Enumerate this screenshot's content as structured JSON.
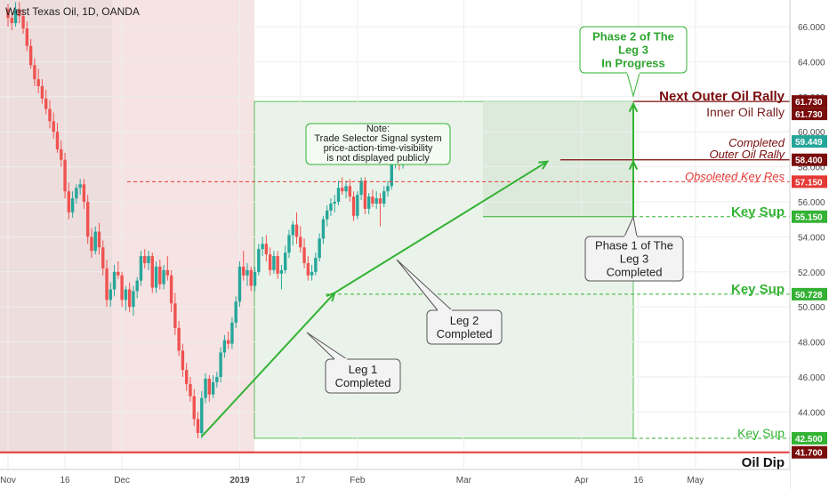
{
  "chart_data": {
    "type": "candlestick",
    "title": "West Texas Oil, 1D, OANDA",
    "ylim": [
      41.0,
      67.5
    ],
    "y_ticks": [
      "44.000",
      "46.000",
      "48.000",
      "50.000",
      "52.000",
      "54.000",
      "56.000",
      "58.000",
      "60.000",
      "62.000",
      "64.000",
      "66.000"
    ],
    "x_labels": [
      {
        "label": "Nov",
        "day": 0
      },
      {
        "label": "16",
        "day": 15
      },
      {
        "label": "Dec",
        "day": 30
      },
      {
        "label": "2019",
        "day": 61
      },
      {
        "label": "17",
        "day": 77
      },
      {
        "label": "Feb",
        "day": 92
      },
      {
        "label": "Mar",
        "day": 120
      },
      {
        "label": "Apr",
        "day": 151
      },
      {
        "label": "16",
        "day": 166
      },
      {
        "label": "May",
        "day": 181
      }
    ],
    "colors": {
      "up": "#26a69a",
      "down": "#ef5350",
      "green": "#33b233",
      "dark_red": "#7a0c0c",
      "red": "#e53935"
    },
    "candles": [
      {
        "o": 67.0,
        "h": 67.3,
        "l": 66.0,
        "c": 66.5
      },
      {
        "o": 66.5,
        "h": 66.9,
        "l": 65.8,
        "c": 66.2
      },
      {
        "o": 66.2,
        "h": 67.4,
        "l": 66.0,
        "c": 67.0
      },
      {
        "o": 67.0,
        "h": 67.4,
        "l": 66.2,
        "c": 66.6
      },
      {
        "o": 66.6,
        "h": 67.0,
        "l": 65.6,
        "c": 65.9
      },
      {
        "o": 65.9,
        "h": 66.3,
        "l": 64.6,
        "c": 64.9
      },
      {
        "o": 64.9,
        "h": 65.3,
        "l": 63.6,
        "c": 63.8
      },
      {
        "o": 63.8,
        "h": 64.2,
        "l": 62.6,
        "c": 63.0
      },
      {
        "o": 63.0,
        "h": 63.6,
        "l": 62.2,
        "c": 62.6
      },
      {
        "o": 62.6,
        "h": 63.0,
        "l": 61.6,
        "c": 61.9
      },
      {
        "o": 61.9,
        "h": 62.4,
        "l": 61.0,
        "c": 61.3
      },
      {
        "o": 61.3,
        "h": 61.8,
        "l": 60.2,
        "c": 60.6
      },
      {
        "o": 60.6,
        "h": 61.1,
        "l": 59.6,
        "c": 60.0
      },
      {
        "o": 60.0,
        "h": 60.5,
        "l": 58.8,
        "c": 59.0
      },
      {
        "o": 59.0,
        "h": 59.5,
        "l": 58.0,
        "c": 58.4
      },
      {
        "o": 58.4,
        "h": 58.8,
        "l": 56.2,
        "c": 56.6
      },
      {
        "o": 56.6,
        "h": 57.1,
        "l": 55.0,
        "c": 55.4
      },
      {
        "o": 55.4,
        "h": 56.6,
        "l": 55.1,
        "c": 56.2
      },
      {
        "o": 56.2,
        "h": 57.0,
        "l": 55.9,
        "c": 56.8
      },
      {
        "o": 56.8,
        "h": 57.3,
        "l": 56.4,
        "c": 57.0
      },
      {
        "o": 57.0,
        "h": 57.3,
        "l": 55.6,
        "c": 56.0
      },
      {
        "o": 56.0,
        "h": 56.4,
        "l": 53.6,
        "c": 54.0
      },
      {
        "o": 54.0,
        "h": 54.5,
        "l": 52.8,
        "c": 53.2
      },
      {
        "o": 53.2,
        "h": 54.6,
        "l": 53.0,
        "c": 54.3
      },
      {
        "o": 54.3,
        "h": 54.8,
        "l": 53.0,
        "c": 53.4
      },
      {
        "o": 53.4,
        "h": 53.8,
        "l": 51.8,
        "c": 52.2
      },
      {
        "o": 52.2,
        "h": 52.7,
        "l": 50.0,
        "c": 50.4
      },
      {
        "o": 50.4,
        "h": 51.4,
        "l": 50.0,
        "c": 51.0
      },
      {
        "o": 51.0,
        "h": 52.4,
        "l": 50.6,
        "c": 52.0
      },
      {
        "o": 52.0,
        "h": 52.6,
        "l": 51.6,
        "c": 51.8
      },
      {
        "o": 51.8,
        "h": 52.0,
        "l": 50.0,
        "c": 50.4
      },
      {
        "o": 50.4,
        "h": 51.2,
        "l": 49.8,
        "c": 51.0
      },
      {
        "o": 51.0,
        "h": 51.4,
        "l": 49.7,
        "c": 50.0
      },
      {
        "o": 50.0,
        "h": 51.2,
        "l": 49.5,
        "c": 50.9
      },
      {
        "o": 50.9,
        "h": 51.7,
        "l": 50.5,
        "c": 51.5
      },
      {
        "o": 51.5,
        "h": 53.2,
        "l": 51.2,
        "c": 52.9
      },
      {
        "o": 52.9,
        "h": 53.3,
        "l": 52.2,
        "c": 52.5
      },
      {
        "o": 52.5,
        "h": 53.2,
        "l": 52.1,
        "c": 52.9
      },
      {
        "o": 52.9,
        "h": 53.1,
        "l": 50.8,
        "c": 51.1
      },
      {
        "o": 51.1,
        "h": 52.6,
        "l": 50.8,
        "c": 52.3
      },
      {
        "o": 52.3,
        "h": 52.7,
        "l": 51.0,
        "c": 51.3
      },
      {
        "o": 51.3,
        "h": 52.4,
        "l": 51.0,
        "c": 52.1
      },
      {
        "o": 52.1,
        "h": 52.9,
        "l": 51.5,
        "c": 51.8
      },
      {
        "o": 51.8,
        "h": 52.1,
        "l": 49.7,
        "c": 50.2
      },
      {
        "o": 50.2,
        "h": 50.8,
        "l": 48.4,
        "c": 48.8
      },
      {
        "o": 48.8,
        "h": 49.2,
        "l": 47.2,
        "c": 47.5
      },
      {
        "o": 47.5,
        "h": 47.9,
        "l": 46.0,
        "c": 46.4
      },
      {
        "o": 46.4,
        "h": 46.8,
        "l": 45.2,
        "c": 45.6
      },
      {
        "o": 45.6,
        "h": 46.0,
        "l": 44.6,
        "c": 44.9
      },
      {
        "o": 44.9,
        "h": 45.3,
        "l": 43.2,
        "c": 43.6
      },
      {
        "o": 43.6,
        "h": 44.0,
        "l": 42.5,
        "c": 42.8
      },
      {
        "o": 42.8,
        "h": 45.2,
        "l": 42.5,
        "c": 44.8
      },
      {
        "o": 44.8,
        "h": 46.2,
        "l": 44.5,
        "c": 45.9
      },
      {
        "o": 45.9,
        "h": 46.1,
        "l": 44.6,
        "c": 45.0
      },
      {
        "o": 45.0,
        "h": 46.1,
        "l": 44.8,
        "c": 45.7
      },
      {
        "o": 45.7,
        "h": 46.3,
        "l": 45.4,
        "c": 46.0
      },
      {
        "o": 46.0,
        "h": 47.7,
        "l": 45.7,
        "c": 47.4
      },
      {
        "o": 47.4,
        "h": 48.4,
        "l": 47.1,
        "c": 48.1
      },
      {
        "o": 48.1,
        "h": 48.6,
        "l": 47.6,
        "c": 47.9
      },
      {
        "o": 47.9,
        "h": 49.4,
        "l": 47.6,
        "c": 49.1
      },
      {
        "o": 49.1,
        "h": 50.6,
        "l": 48.8,
        "c": 50.3
      },
      {
        "o": 50.3,
        "h": 52.6,
        "l": 50.0,
        "c": 52.3
      },
      {
        "o": 52.3,
        "h": 53.2,
        "l": 51.5,
        "c": 51.8
      },
      {
        "o": 51.8,
        "h": 52.5,
        "l": 51.2,
        "c": 52.1
      },
      {
        "o": 52.1,
        "h": 52.3,
        "l": 50.9,
        "c": 51.2
      },
      {
        "o": 51.2,
        "h": 52.3,
        "l": 50.9,
        "c": 52.0
      },
      {
        "o": 52.0,
        "h": 53.6,
        "l": 51.8,
        "c": 53.3
      },
      {
        "o": 53.3,
        "h": 54.0,
        "l": 52.9,
        "c": 53.6
      },
      {
        "o": 53.6,
        "h": 54.1,
        "l": 52.6,
        "c": 53.0
      },
      {
        "o": 53.0,
        "h": 53.4,
        "l": 51.8,
        "c": 52.1
      },
      {
        "o": 52.1,
        "h": 53.2,
        "l": 51.9,
        "c": 52.9
      },
      {
        "o": 52.9,
        "h": 53.2,
        "l": 51.6,
        "c": 51.9
      },
      {
        "o": 51.9,
        "h": 52.4,
        "l": 51.0,
        "c": 52.1
      },
      {
        "o": 52.1,
        "h": 53.5,
        "l": 51.9,
        "c": 53.1
      },
      {
        "o": 53.1,
        "h": 54.4,
        "l": 52.8,
        "c": 54.1
      },
      {
        "o": 54.1,
        "h": 54.9,
        "l": 53.5,
        "c": 54.7
      },
      {
        "o": 54.7,
        "h": 55.4,
        "l": 53.6,
        "c": 54.0
      },
      {
        "o": 54.0,
        "h": 54.6,
        "l": 53.1,
        "c": 53.4
      },
      {
        "o": 53.4,
        "h": 53.9,
        "l": 52.2,
        "c": 52.5
      },
      {
        "o": 52.5,
        "h": 52.9,
        "l": 51.5,
        "c": 51.8
      },
      {
        "o": 51.8,
        "h": 52.4,
        "l": 51.5,
        "c": 52.0
      },
      {
        "o": 52.0,
        "h": 53.1,
        "l": 51.8,
        "c": 52.8
      },
      {
        "o": 52.8,
        "h": 54.2,
        "l": 52.6,
        "c": 53.9
      },
      {
        "o": 53.9,
        "h": 55.2,
        "l": 53.6,
        "c": 55.0
      },
      {
        "o": 55.0,
        "h": 55.8,
        "l": 54.6,
        "c": 55.5
      },
      {
        "o": 55.5,
        "h": 56.2,
        "l": 55.2,
        "c": 55.9
      },
      {
        "o": 55.9,
        "h": 56.4,
        "l": 55.4,
        "c": 56.0
      },
      {
        "o": 56.0,
        "h": 57.2,
        "l": 55.8,
        "c": 56.8
      },
      {
        "o": 56.8,
        "h": 57.4,
        "l": 56.4,
        "c": 56.6
      },
      {
        "o": 56.6,
        "h": 57.2,
        "l": 56.2,
        "c": 56.9
      },
      {
        "o": 56.9,
        "h": 57.3,
        "l": 56.0,
        "c": 56.3
      },
      {
        "o": 56.3,
        "h": 56.6,
        "l": 54.9,
        "c": 55.2
      },
      {
        "o": 55.2,
        "h": 56.6,
        "l": 55.0,
        "c": 56.4
      },
      {
        "o": 56.4,
        "h": 57.4,
        "l": 56.1,
        "c": 57.2
      },
      {
        "o": 57.2,
        "h": 57.4,
        "l": 55.3,
        "c": 55.6
      },
      {
        "o": 55.6,
        "h": 56.5,
        "l": 55.3,
        "c": 56.3
      },
      {
        "o": 56.3,
        "h": 56.7,
        "l": 55.7,
        "c": 55.9
      },
      {
        "o": 55.9,
        "h": 56.6,
        "l": 55.6,
        "c": 56.2
      },
      {
        "o": 56.2,
        "h": 56.5,
        "l": 54.6,
        "c": 55.9
      },
      {
        "o": 55.9,
        "h": 56.9,
        "l": 55.7,
        "c": 56.6
      },
      {
        "o": 56.6,
        "h": 57.2,
        "l": 56.3,
        "c": 56.9
      },
      {
        "o": 56.9,
        "h": 58.4,
        "l": 56.7,
        "c": 58.2
      },
      {
        "o": 58.2,
        "h": 58.7,
        "l": 57.9,
        "c": 58.3
      },
      {
        "o": 58.3,
        "h": 58.6,
        "l": 57.8,
        "c": 58.1
      },
      {
        "o": 58.1,
        "h": 58.9,
        "l": 57.9,
        "c": 58.7
      },
      {
        "o": 58.7,
        "h": 59.6,
        "l": 58.5,
        "c": 59.4
      }
    ],
    "levels": [
      {
        "label": "Next Outer Oil Rally",
        "value": 61.73,
        "badge": "61.730",
        "badge_color": "#7a0c0c",
        "line_color": "#7a0c0c",
        "style": "bold"
      },
      {
        "label": "Inner Oil Rally",
        "value": 61.73,
        "badge": "61.730",
        "badge_color": "#7a0c0c",
        "line_color": "#7a0c0c",
        "style": "plain"
      },
      {
        "label": "Completed\nOuter Oil Rally",
        "value": 58.4,
        "badge": "58.400",
        "badge_color": "#7a0c0c",
        "line_color": "#7a0c0c",
        "style": "italic"
      },
      {
        "label": "Obsoleted Key Res",
        "value": 57.15,
        "badge": "57.150",
        "badge_color": "#e53935",
        "line_color": "#e53935",
        "style": "italic-dash"
      },
      {
        "label": "Key Sup",
        "value": 55.15,
        "badge": "55.150",
        "badge_color": "#33b233",
        "line_color": "#33b233",
        "style": "bold-dash"
      },
      {
        "label": "Key Sup",
        "value": 50.728,
        "badge": "50.728",
        "badge_color": "#33b233",
        "line_color": "#33b233",
        "style": "bold-dash"
      },
      {
        "label": "Key Sup",
        "value": 42.5,
        "badge": "42.500",
        "badge_color": "#33b233",
        "line_color": "#33b233",
        "style": "plain-dash"
      },
      {
        "label": "Oil Dip",
        "value": 41.7,
        "badge": "41.700",
        "badge_color": "#7a0c0c",
        "line_color": "#e53935",
        "style": "bold-solid"
      }
    ],
    "current_price_badge": "59.449",
    "annotations": {
      "phase2": "Phase 2 of The\nLeg 3\nIn Progress",
      "phase1": "Phase 1 of The\nLeg 3\nCompleted",
      "leg1": "Leg 1\nCompleted",
      "leg2": "Leg 2\nCompleted",
      "note": "Note:\nTrade Selector Signal system\nprice-action-time-visibility\nis not displayed publicly"
    }
  }
}
